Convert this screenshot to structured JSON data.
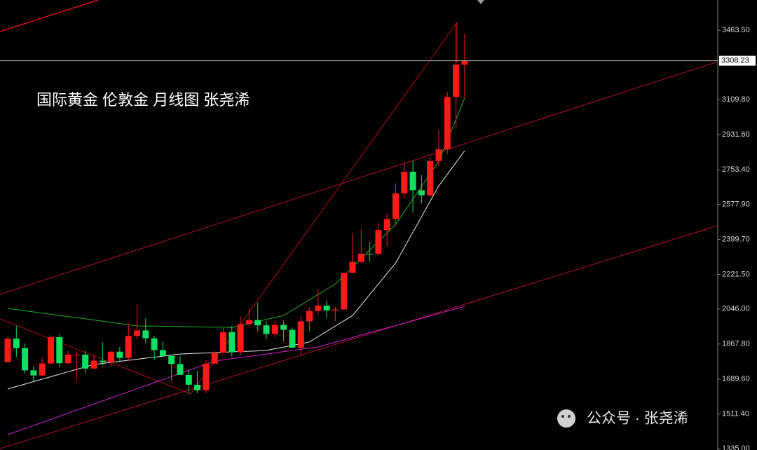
{
  "chart_data": {
    "type": "candlestick",
    "title": "国际黄金 伦敦金 月线图 张尧浠",
    "watermark": "公众号 · 张尧浠",
    "up_color": "#ff1a1a",
    "down_color": "#10e060",
    "ylim": [
      1329,
      3617
    ],
    "yticks": [
      {
        "value": 3463.5,
        "label": "3463.50"
      },
      {
        "value": 3109.8,
        "label": "3109.80"
      },
      {
        "value": 2931.6,
        "label": "2931.60"
      },
      {
        "value": 2753.4,
        "label": "2753.40"
      },
      {
        "value": 2577.9,
        "label": "2577.90"
      },
      {
        "value": 2399.7,
        "label": "2399.70"
      },
      {
        "value": 2221.5,
        "label": "2221.50"
      },
      {
        "value": 2046,
        "label": "2046.00"
      },
      {
        "value": 1867.8,
        "label": "1867.80"
      },
      {
        "value": 1689.6,
        "label": "1689.60"
      },
      {
        "value": 1511.4,
        "label": "1511.40"
      },
      {
        "value": 1335,
        "label": "1335.00"
      }
    ],
    "last_price": 3308.23,
    "open": [
      1776,
      1895,
      1847,
      1734,
      1708,
      1769,
      1903,
      1770,
      1814,
      1814,
      1743,
      1783,
      1775,
      1829,
      1797,
      1909,
      1937,
      1897,
      1837,
      1807,
      1766,
      1711,
      1661,
      1633,
      1768,
      1824,
      1928,
      1826,
      1969,
      1990,
      1963,
      1919,
      1965,
      1940,
      1849,
      1983,
      2036,
      2063,
      2039,
      2044,
      2230,
      2286,
      2327,
      2326,
      2447,
      2503,
      2634,
      2744,
      2650,
      2624,
      2798,
      2858,
      3124,
      3288
    ],
    "high": [
      1906,
      1959,
      1871,
      1755,
      1798,
      1913,
      1916,
      1833,
      1832,
      1834,
      1814,
      1877,
      1831,
      1853,
      1974,
      2070,
      1998,
      1910,
      1880,
      1814,
      1808,
      1735,
      1730,
      1787,
      1833,
      1949,
      1960,
      2009,
      2049,
      2079,
      1984,
      1987,
      1987,
      1953,
      2009,
      2052,
      2146,
      2088,
      2055,
      2223,
      2432,
      2450,
      2387,
      2483,
      2531,
      2685,
      2790,
      2801,
      2726,
      2817,
      2956,
      3148,
      3500,
      3446
    ],
    "low": [
      1775,
      1802,
      1717,
      1677,
      1705,
      1766,
      1750,
      1767,
      1688,
      1721,
      1746,
      1759,
      1753,
      1780,
      1781,
      1890,
      1872,
      1787,
      1805,
      1681,
      1709,
      1615,
      1618,
      1617,
      1765,
      1823,
      1804,
      1810,
      1950,
      1932,
      1893,
      1902,
      1884,
      1847,
      1810,
      1931,
      2016,
      2002,
      1984,
      2039,
      2228,
      2277,
      2286,
      2318,
      2364,
      2471,
      2604,
      2536,
      2583,
      2614,
      2772,
      2833,
      2970,
      3120
    ],
    "close": [
      1895,
      1847,
      1734,
      1708,
      1769,
      1903,
      1770,
      1814,
      1814,
      1743,
      1783,
      1775,
      1829,
      1797,
      1909,
      1937,
      1897,
      1837,
      1807,
      1766,
      1711,
      1661,
      1633,
      1768,
      1824,
      1928,
      1826,
      1969,
      1990,
      1963,
      1919,
      1965,
      1940,
      1849,
      1983,
      2036,
      2063,
      2039,
      2044,
      2230,
      2286,
      2327,
      2326,
      2447,
      2503,
      2634,
      2744,
      2650,
      2624,
      2798,
      2858,
      3124,
      3288,
      3308.23
    ],
    "lines": [
      {
        "color": "#e8e8e8",
        "values": [
          1639,
          1652,
          1664,
          1677,
          1689,
          1702,
          1714,
          1727,
          1739,
          1752,
          1764,
          1769,
          1775,
          1780,
          1785,
          1790,
          1796,
          1801,
          1806,
          1812,
          1817,
          1819,
          1821,
          1822,
          1824,
          1826,
          1828,
          1830,
          1831,
          1833,
          1835,
          1844,
          1852,
          1861,
          1869,
          1878,
          1905,
          1932,
          1959,
          1986,
          2013,
          2066,
          2120,
          2173,
          2227,
          2280,
          2358,
          2437,
          2515,
          2594,
          2672,
          2731,
          2791,
          2850
        ]
      },
      {
        "color": "#cc22cc",
        "values": [
          1407,
          1423,
          1438,
          1454,
          1469,
          1485,
          1500,
          1516,
          1532,
          1547,
          1563,
          1578,
          1594,
          1609,
          1625,
          1641,
          1656,
          1672,
          1687,
          1703,
          1719,
          1734,
          1750,
          1765,
          1781,
          1787,
          1793,
          1799,
          1805,
          1811,
          1817,
          1823,
          1829,
          1835,
          1841,
          1847,
          1853,
          1865,
          1877,
          1889,
          1901,
          1914,
          1926,
          1938,
          1950,
          1962,
          1974,
          1986,
          1998,
          2011,
          2023,
          2035,
          2047,
          2059
        ]
      },
      {
        "color": "#22b022",
        "values": [
          2049,
          2043,
          2037,
          2031,
          2025,
          2019,
          2013,
          2007,
          2002,
          1996,
          1990,
          1984,
          1978,
          1972,
          1966,
          1960,
          1959,
          1959,
          1958,
          1957,
          1957,
          1956,
          1955,
          1954,
          1954,
          1953,
          1952,
          1962,
          1972,
          1982,
          1993,
          2003,
          2013,
          2040,
          2066,
          2093,
          2120,
          2146,
          2173,
          2216,
          2259,
          2303,
          2346,
          2389,
          2433,
          2476,
          2540,
          2604,
          2669,
          2733,
          2797,
          2904,
          3011,
          3118
        ]
      }
    ]
  }
}
